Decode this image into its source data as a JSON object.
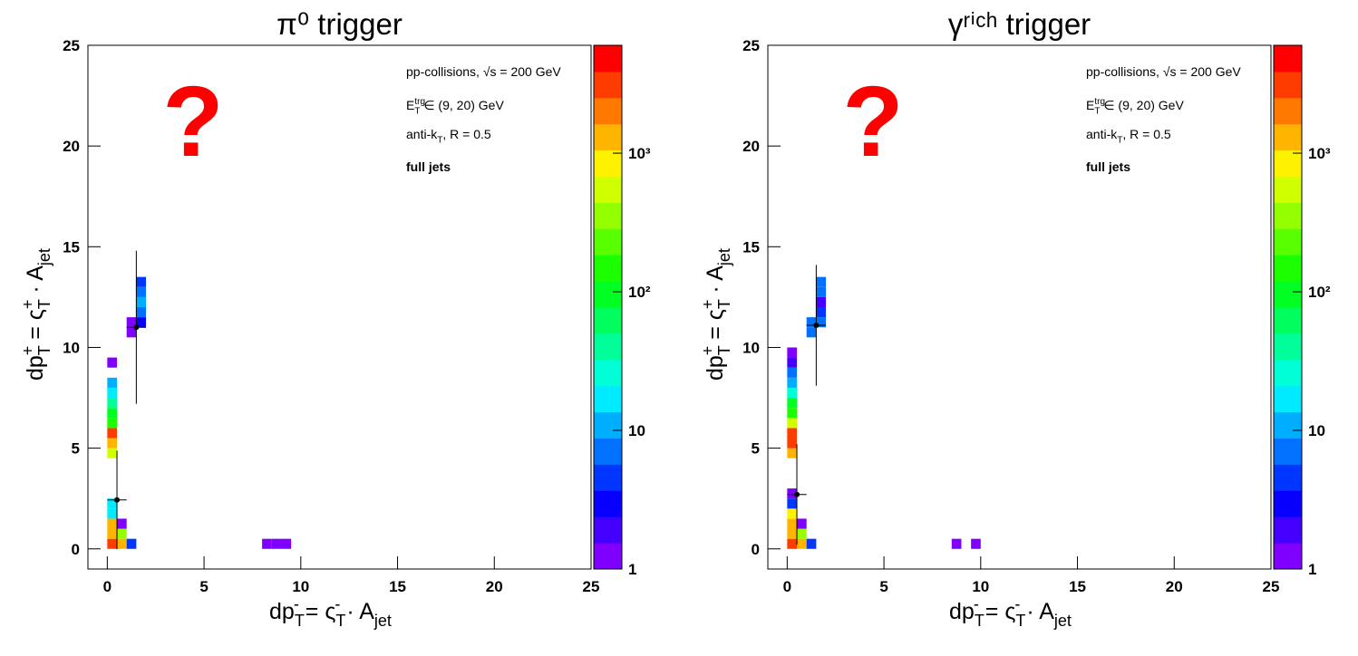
{
  "chart_data": [
    {
      "type": "heatmap",
      "title": "π⁰ trigger",
      "xlabel": [
        "dp",
        "T",
        "-",
        " = ς",
        "T",
        "-",
        " · A",
        "jet"
      ],
      "ylabel": [
        "dp",
        "T",
        "+",
        " = ς",
        "T",
        "+",
        " · A",
        "jet"
      ],
      "question_mark": "?",
      "notes": [
        [
          "pp-collisions, √s = 200 GeV"
        ],
        [
          "E",
          "trg",
          "T",
          " ∈ (9, 20) GeV"
        ],
        [
          "anti-k",
          "T",
          ", R = 0.5"
        ],
        [
          "full jets"
        ]
      ],
      "xlim": [
        -1,
        25
      ],
      "ylim": [
        -1,
        25
      ],
      "xticks": [
        0,
        5,
        10,
        15,
        20,
        25
      ],
      "yticks": [
        0,
        5,
        10,
        15,
        20,
        25
      ],
      "zlim": [
        1,
        6000
      ],
      "zlog": true,
      "palette": "rainbow",
      "zticks": [
        1,
        10,
        {
          "value": 100,
          "label": "10²"
        },
        {
          "value": 1000,
          "label": "10³"
        }
      ],
      "cells": {
        "x": [
          [
            0,
            0.5
          ],
          [
            0.5,
            1
          ],
          [
            1,
            1.5
          ],
          [
            0,
            0.5
          ],
          [
            0.5,
            1
          ],
          [
            0,
            0.5
          ],
          [
            0.5,
            1
          ],
          [
            0,
            0.5
          ],
          [
            0,
            0.5
          ],
          [
            0,
            0.5
          ],
          [
            0,
            0.5
          ],
          [
            0,
            0.5
          ],
          [
            0,
            0.5
          ],
          [
            0,
            0.5
          ],
          [
            0,
            0.5
          ],
          [
            0,
            0.5
          ],
          [
            0,
            0.5
          ],
          [
            0,
            0.5
          ],
          [
            1,
            1.5
          ],
          [
            1,
            1.5
          ],
          [
            1.5,
            2
          ],
          [
            1.5,
            2
          ],
          [
            1.5,
            2
          ],
          [
            1.5,
            2
          ],
          [
            1.5,
            2
          ],
          [
            8,
            8.5
          ],
          [
            8.5,
            9
          ],
          [
            9,
            9.5
          ]
        ],
        "y": [
          [
            0,
            0.5
          ],
          [
            0,
            0.5
          ],
          [
            0,
            0.5
          ],
          [
            0.5,
            1
          ],
          [
            0.5,
            1
          ],
          [
            1,
            1.5
          ],
          [
            1,
            1.5
          ],
          [
            1.5,
            2
          ],
          [
            2,
            2.5
          ],
          [
            4.5,
            5
          ],
          [
            5,
            5.5
          ],
          [
            5.5,
            6
          ],
          [
            6,
            6.5
          ],
          [
            6.5,
            7
          ],
          [
            7,
            7.5
          ],
          [
            7.5,
            8
          ],
          [
            8,
            8.5
          ],
          [
            9,
            9.5
          ],
          [
            10.5,
            11
          ],
          [
            11,
            11.5
          ],
          [
            11,
            11.5
          ],
          [
            11.5,
            12
          ],
          [
            12,
            12.5
          ],
          [
            12.5,
            13
          ],
          [
            13,
            13.5
          ],
          [
            0,
            0.5
          ],
          [
            0,
            0.5
          ],
          [
            0,
            0.5
          ]
        ],
        "values": [
          3500,
          1300,
          4,
          1500,
          400,
          1200,
          1.3,
          20,
          15,
          600,
          1500,
          3000,
          150,
          100,
          40,
          20,
          10,
          1.3,
          1.3,
          1.3,
          3,
          6,
          10,
          8,
          5,
          1.2,
          1.2,
          1.2
        ]
      },
      "profile": {
        "x": [
          0.5,
          1.5
        ],
        "y": [
          2.43,
          11.0
        ],
        "xerr": [
          0.5,
          0.5
        ],
        "yerr": [
          2.45,
          3.8
        ]
      }
    },
    {
      "type": "heatmap",
      "title": "γʳⁱᶜʰ trigger",
      "xlabel": [
        "dp",
        "T",
        "-",
        " = ς",
        "T",
        "-",
        " · A",
        "jet"
      ],
      "ylabel": [
        "dp",
        "T",
        "+",
        " = ς",
        "T",
        "+",
        " · A",
        "jet"
      ],
      "question_mark": "?",
      "notes": [
        [
          "pp-collisions, √s = 200 GeV"
        ],
        [
          "E",
          "trg",
          "T",
          " ∈ (9, 20) GeV"
        ],
        [
          "anti-k",
          "T",
          ", R = 0.5"
        ],
        [
          "full jets"
        ]
      ],
      "xlim": [
        -1,
        25
      ],
      "ylim": [
        -1,
        25
      ],
      "xticks": [
        0,
        5,
        10,
        15,
        20,
        25
      ],
      "yticks": [
        0,
        5,
        10,
        15,
        20,
        25
      ],
      "zlim": [
        1,
        6000
      ],
      "zlog": true,
      "palette": "rainbow",
      "zticks": [
        1,
        10,
        {
          "value": 100,
          "label": "10²"
        },
        {
          "value": 1000,
          "label": "10³"
        }
      ],
      "cells": {
        "x": [
          [
            0,
            0.5
          ],
          [
            0.5,
            1
          ],
          [
            1,
            1.5
          ],
          [
            0,
            0.5
          ],
          [
            0.5,
            1
          ],
          [
            0,
            0.5
          ],
          [
            0.5,
            1
          ],
          [
            0,
            0.5
          ],
          [
            0,
            0.5
          ],
          [
            0,
            0.5
          ],
          [
            0,
            0.5
          ],
          [
            0,
            0.5
          ],
          [
            0,
            0.5
          ],
          [
            0,
            0.5
          ],
          [
            0,
            0.5
          ],
          [
            0,
            0.5
          ],
          [
            0,
            0.5
          ],
          [
            0,
            0.5
          ],
          [
            0,
            0.5
          ],
          [
            0,
            0.5
          ],
          [
            0,
            0.5
          ],
          [
            1,
            1.5
          ],
          [
            1,
            1.5
          ],
          [
            1.5,
            2
          ],
          [
            1.5,
            2
          ],
          [
            1.5,
            2
          ],
          [
            1.5,
            2
          ],
          [
            1.5,
            2
          ],
          [
            8.5,
            9
          ],
          [
            9.5,
            10
          ]
        ],
        "y": [
          [
            0,
            0.5
          ],
          [
            0,
            0.5
          ],
          [
            0,
            0.5
          ],
          [
            0.5,
            1
          ],
          [
            0.5,
            1
          ],
          [
            1,
            1.5
          ],
          [
            1,
            1.5
          ],
          [
            1.5,
            2
          ],
          [
            2,
            2.5
          ],
          [
            2.5,
            3
          ],
          [
            4.5,
            5
          ],
          [
            5,
            5.5
          ],
          [
            5.5,
            6
          ],
          [
            6,
            6.5
          ],
          [
            6.5,
            7
          ],
          [
            7,
            7.5
          ],
          [
            7.5,
            8
          ],
          [
            8,
            8.5
          ],
          [
            8.5,
            9
          ],
          [
            9,
            9.5
          ],
          [
            9.5,
            10
          ],
          [
            10.5,
            11
          ],
          [
            11,
            11.5
          ],
          [
            11,
            11.5
          ],
          [
            11.5,
            12
          ],
          [
            12,
            12.5
          ],
          [
            12.5,
            13
          ],
          [
            13,
            13.5
          ],
          [
            0,
            0.5
          ],
          [
            0,
            0.5
          ]
        ],
        "values": [
          3500,
          1300,
          4,
          1500,
          300,
          1200,
          1.3,
          1000,
          4,
          1.3,
          1300,
          3500,
          3000,
          600,
          150,
          80,
          30,
          12,
          6,
          2,
          1.3,
          8,
          8,
          8,
          4,
          2,
          8,
          8,
          1.2,
          1.2
        ]
      },
      "profile": {
        "x": [
          0.5,
          1.5
        ],
        "y": [
          2.7,
          11.1
        ],
        "xerr": [
          0.5,
          0.5
        ],
        "yerr": [
          2.5,
          3.0
        ]
      }
    }
  ]
}
